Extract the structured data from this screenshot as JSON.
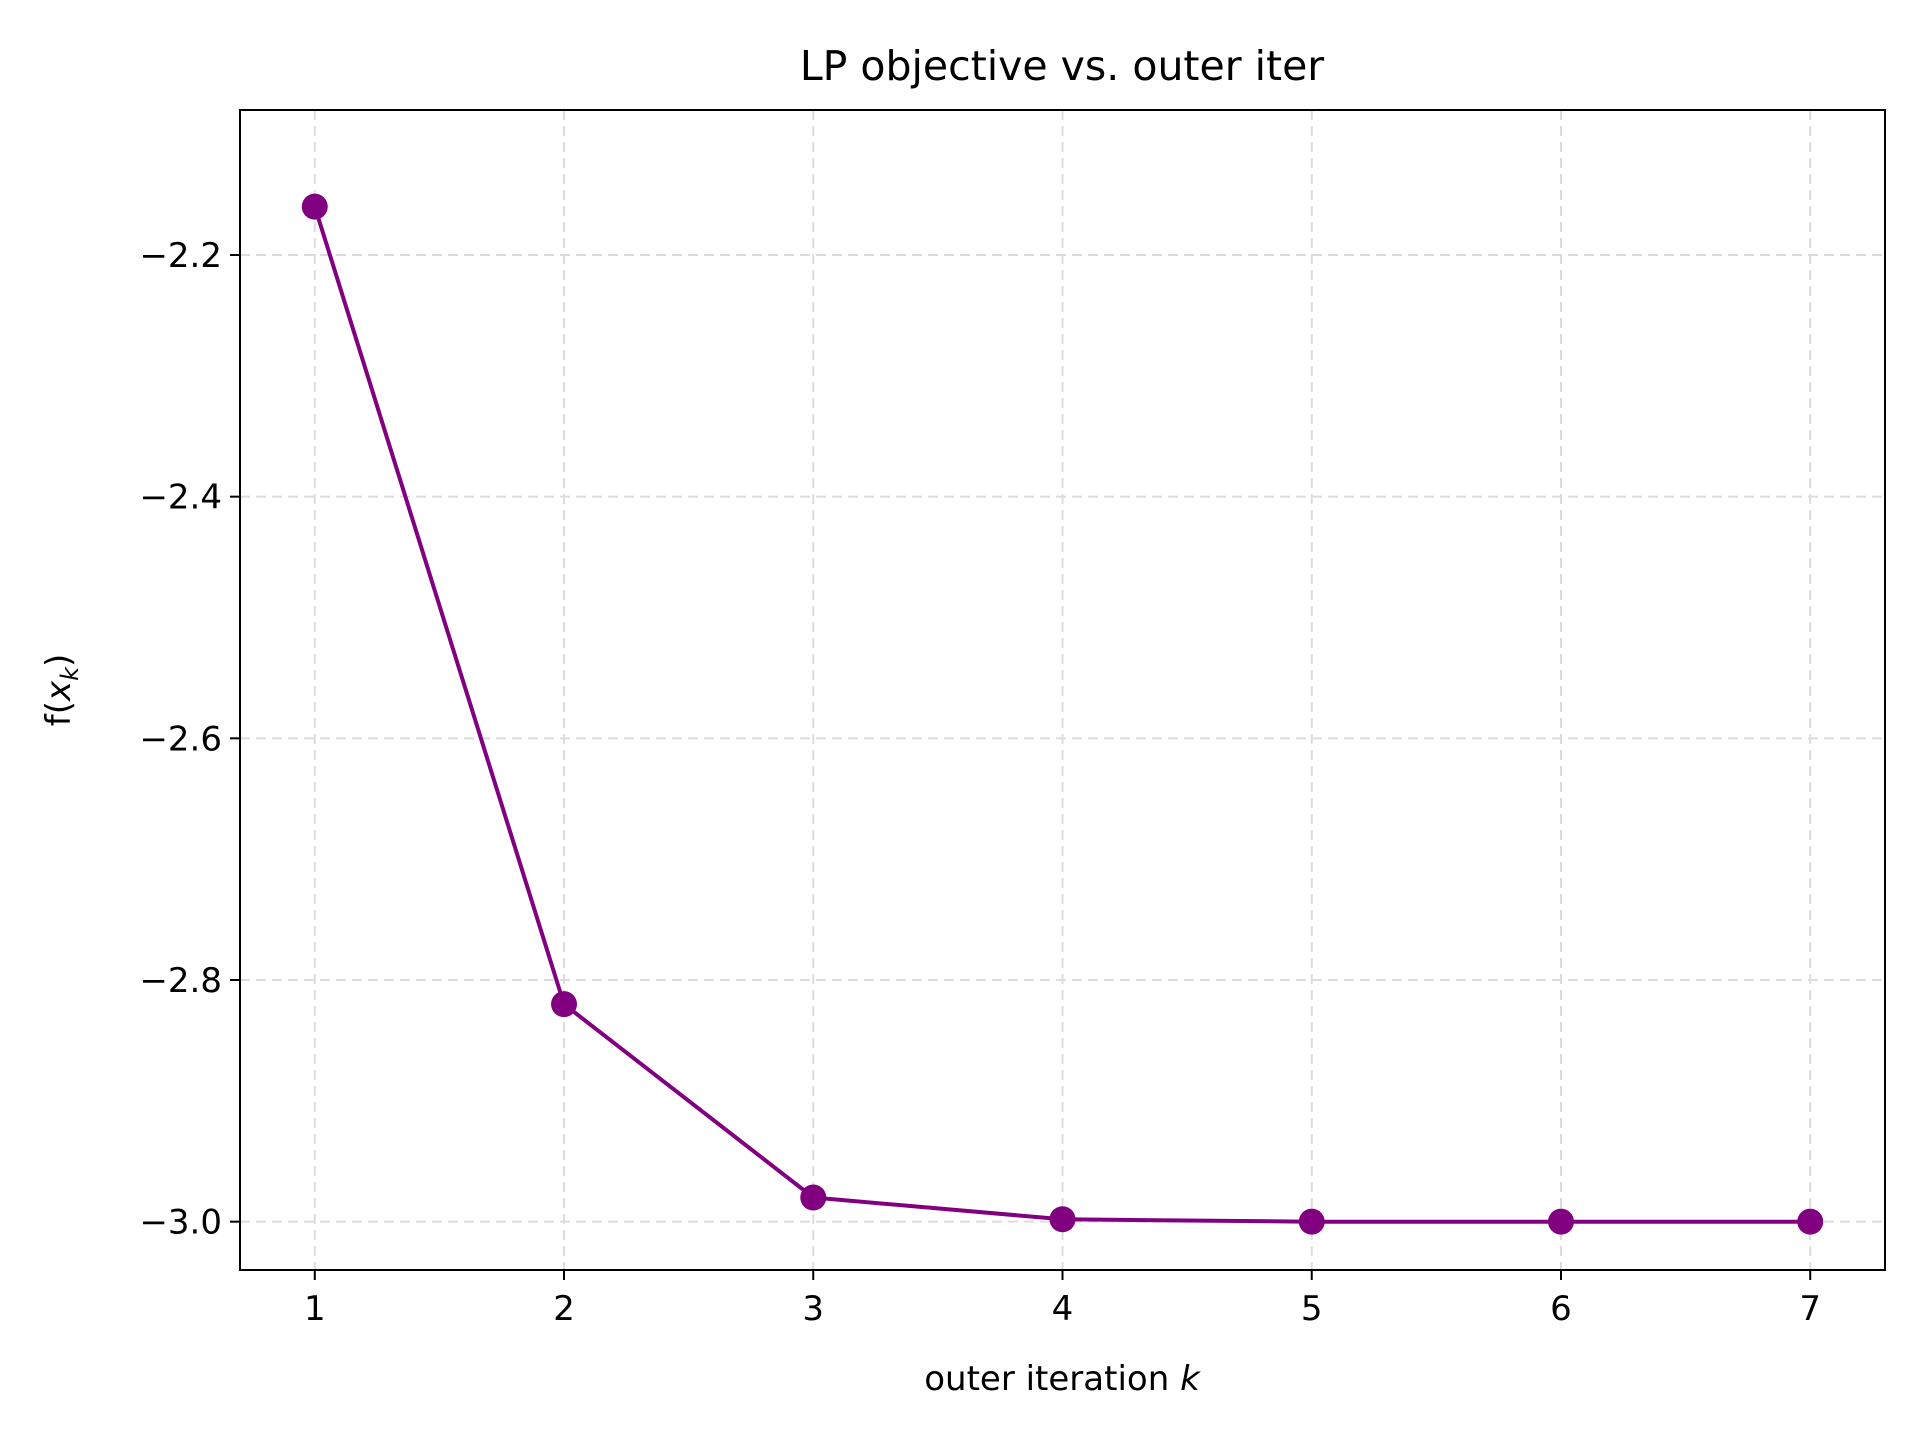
{
  "chart_data": {
    "type": "line",
    "title": "LP objective vs. outer iter",
    "xlabel": {
      "text": "outer iteration ",
      "var": "k"
    },
    "ylabel": {
      "prefix": "f(",
      "var": "x",
      "sub": "k",
      "suffix": ")"
    },
    "x": [
      1,
      2,
      3,
      4,
      5,
      6,
      7
    ],
    "y": [
      -2.16,
      -2.82,
      -2.98,
      -2.998,
      -3.0,
      -3.0,
      -3.0
    ],
    "xticks": [
      1,
      2,
      3,
      4,
      5,
      6,
      7
    ],
    "yticks": [
      -2.2,
      -2.4,
      -2.6,
      -2.8,
      -3.0
    ],
    "ytick_labels": [
      "−2.2",
      "−2.4",
      "−2.6",
      "−2.8",
      "−3.0"
    ],
    "xlim": [
      0.7,
      7.3
    ],
    "ylim": [
      -3.04,
      -2.08
    ],
    "grid": true,
    "line_color": "#800080",
    "marker": "circle"
  }
}
